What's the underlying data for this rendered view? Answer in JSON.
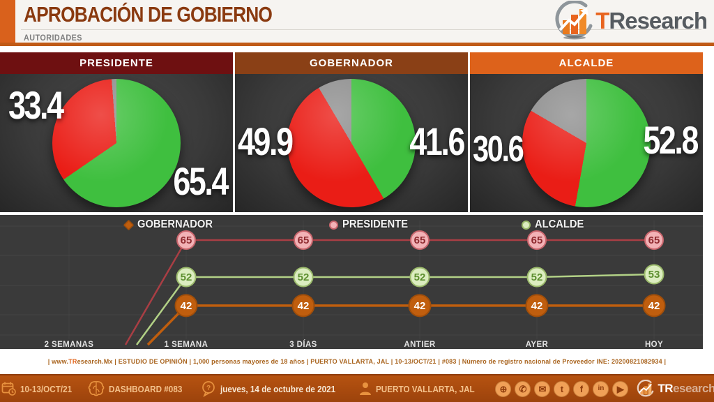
{
  "header": {
    "title": "APROBACIÓN DE GOBIERNO",
    "subtitle": "AUTORIDADES",
    "brand_t": "T",
    "brand_rest": "Research"
  },
  "colors": {
    "approve_green": "#3fbf3f",
    "disapprove_red": "#ea1d16",
    "other_gray": "#8e8e8e",
    "header_presidente": "#6e1011",
    "header_gobernador": "#8a4016",
    "header_alcalde": "#dd621b",
    "accent_orange": "#d9611c"
  },
  "panels": [
    {
      "label": "PRESIDENTE",
      "header_color": "#6e1011",
      "approve": 65.4,
      "disapprove": 33.4,
      "other": 1.2,
      "left_value": "33.4",
      "right_value": "65.4"
    },
    {
      "label": "GOBERNADOR",
      "header_color": "#8a4016",
      "approve": 41.6,
      "disapprove": 49.9,
      "other": 8.5,
      "left_value": "49.9",
      "right_value": "41.6"
    },
    {
      "label": "ALCALDE",
      "header_color": "#dd621b",
      "approve": 52.8,
      "disapprove": 30.6,
      "other": 16.6,
      "left_value": "30.6",
      "right_value": "52.8"
    }
  ],
  "chart_data": {
    "type": "line",
    "title": "",
    "categories": [
      "2 SEMANAS",
      "1 SEMANA",
      "3 DÍAS",
      "ANTIER",
      "AYER",
      "HOY"
    ],
    "series": [
      {
        "name": "GOBERNADOR",
        "values": [
          null,
          42,
          42,
          42,
          42,
          42
        ],
        "color": "#c05e0e",
        "marker_fill": "#c05e0e",
        "marker_border": "#a04e0a",
        "marker_text_color": "#ffffff",
        "marker_shape": "diamond"
      },
      {
        "name": "PRESIDENTE",
        "values": [
          null,
          65,
          65,
          65,
          65,
          65
        ],
        "color": "#a93e44",
        "marker_fill": "#f2b2b6",
        "marker_border": "#c9666d",
        "marker_text_color": "#8f2b30",
        "marker_shape": "circle"
      },
      {
        "name": "ALCALDE",
        "values": [
          null,
          52,
          52,
          52,
          52,
          53
        ],
        "color": "#b2d186",
        "marker_fill": "#dcedc0",
        "marker_border": "#9cbb6c",
        "marker_text_color": "#5d8f2f",
        "marker_shape": "circle"
      }
    ],
    "ylim": [
      30,
      70
    ],
    "grid": true,
    "legend_position": "top",
    "xlabel": "",
    "ylabel": ""
  },
  "footer": {
    "pre": "| www.",
    "brand": "TR",
    "rest": "esearch.Mx | ESTUDIO DE OPINIÓN | 1,000 personas mayores de 18 años | PUERTO VALLARTA, JAL | 10-13/OCT/21 | #083 | Número de registro nacional de Proveedor INE: 20200821082934 |"
  },
  "bottombar": {
    "date_range": "10-13/OCT/21",
    "dashboard": "DASHBOARD #083",
    "full_date": "jueves, 14 de octubre de 2021",
    "location": "PUERTO VALLARTA, JAL",
    "brand_tr": "TR",
    "brand_rest": "esearch",
    "social": [
      {
        "name": "website",
        "glyph": "⊕"
      },
      {
        "name": "phone",
        "glyph": "✆"
      },
      {
        "name": "email",
        "glyph": "✉"
      },
      {
        "name": "twitter",
        "glyph": "t"
      },
      {
        "name": "facebook",
        "glyph": "f"
      },
      {
        "name": "linkedin",
        "glyph": "in"
      },
      {
        "name": "youtube",
        "glyph": "▶"
      }
    ]
  }
}
